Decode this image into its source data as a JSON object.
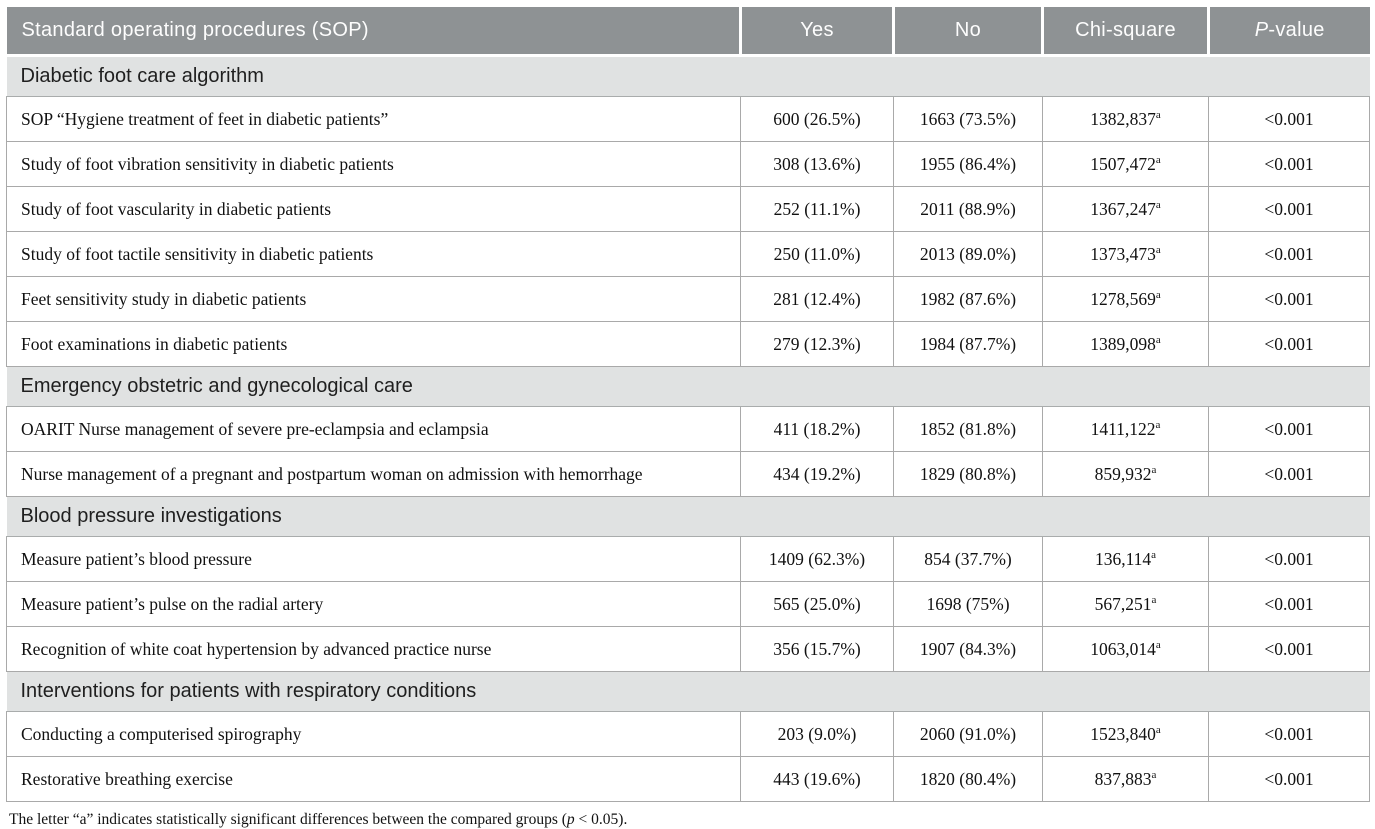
{
  "table": {
    "columns": [
      {
        "text": "Standard operating procedures (SOP)"
      },
      {
        "text": "Yes"
      },
      {
        "text": "No"
      },
      {
        "text": "Chi-square"
      },
      {
        "italic_prefix": "P",
        "text": "-value"
      }
    ],
    "sections": [
      {
        "title": "Diabetic foot care algorithm",
        "rows": [
          {
            "label": "SOP “Hygiene treatment of feet in diabetic patients”",
            "yes": "600 (26.5%)",
            "no": "1663 (73.5%)",
            "chi": "1382,837",
            "chi_sup": "a",
            "p": "<0.001"
          },
          {
            "label": "Study of foot vibration sensitivity in diabetic patients",
            "yes": "308 (13.6%)",
            "no": "1955 (86.4%)",
            "chi": "1507,472",
            "chi_sup": "a",
            "p": "<0.001"
          },
          {
            "label": "Study of foot vascularity in diabetic patients",
            "yes": "252 (11.1%)",
            "no": "2011 (88.9%)",
            "chi": "1367,247",
            "chi_sup": "a",
            "p": "<0.001"
          },
          {
            "label": "Study of foot tactile sensitivity in diabetic patients",
            "yes": "250 (11.0%)",
            "no": "2013 (89.0%)",
            "chi": "1373,473",
            "chi_sup": "a",
            "p": "<0.001"
          },
          {
            "label": "Feet sensitivity study in diabetic patients",
            "yes": "281 (12.4%)",
            "no": "1982 (87.6%)",
            "chi": "1278,569",
            "chi_sup": "a",
            "p": "<0.001"
          },
          {
            "label": "Foot examinations in diabetic patients",
            "yes": "279 (12.3%)",
            "no": "1984 (87.7%)",
            "chi": "1389,098",
            "chi_sup": "a",
            "p": "<0.001"
          }
        ]
      },
      {
        "title": "Emergency obstetric and gynecological care",
        "rows": [
          {
            "label": "OARIT Nurse management of severe pre-eclampsia and eclampsia",
            "yes": "411 (18.2%)",
            "no": "1852 (81.8%)",
            "chi": "1411,122",
            "chi_sup": "a",
            "p": "<0.001"
          },
          {
            "label": "Nurse management of a pregnant and postpartum woman on admission with hemorrhage",
            "yes": "434 (19.2%)",
            "no": "1829 (80.8%)",
            "chi": "859,932",
            "chi_sup": "a",
            "p": "<0.001"
          }
        ]
      },
      {
        "title": "Blood pressure investigations",
        "rows": [
          {
            "label": "Measure patient’s blood pressure",
            "yes": "1409 (62.3%)",
            "no": "854 (37.7%)",
            "chi": "136,114",
            "chi_sup": "a",
            "p": "<0.001"
          },
          {
            "label": "Measure patient’s pulse on the radial artery",
            "yes": "565 (25.0%)",
            "no": "1698 (75%)",
            "chi": "567,251",
            "chi_sup": "a",
            "p": "<0.001"
          },
          {
            "label": "Recognition of white coat hypertension by advanced practice nurse",
            "yes": "356 (15.7%)",
            "no": "1907 (84.3%)",
            "chi": "1063,014",
            "chi_sup": "a",
            "p": "<0.001"
          }
        ]
      },
      {
        "title": "Interventions for patients with respiratory conditions",
        "rows": [
          {
            "label": "Conducting a computerised spirography",
            "yes": "203 (9.0%)",
            "no": "2060 (91.0%)",
            "chi": "1523,840",
            "chi_sup": "a",
            "p": "<0.001"
          },
          {
            "label": "Restorative breathing exercise",
            "yes": "443 (19.6%)",
            "no": "1820 (80.4%)",
            "chi": "837,883",
            "chi_sup": "a",
            "p": "<0.001"
          }
        ]
      }
    ]
  },
  "footnote": {
    "prefix": "The letter “a” indicates statistically significant differences between the compared groups (",
    "italic": "p",
    "suffix": " < 0.05)."
  },
  "colors": {
    "header_bg": "#8e9294",
    "section_bg": "#e0e2e2",
    "border": "#a9a9a9"
  }
}
